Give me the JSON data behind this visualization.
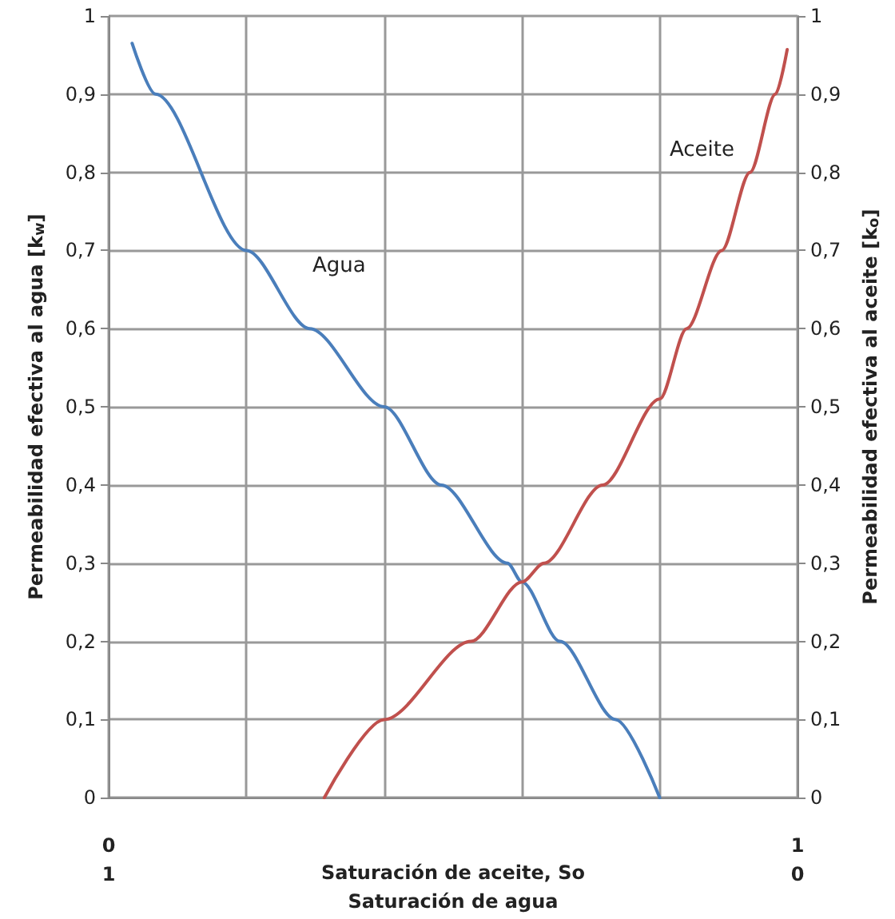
{
  "chart_data": {
    "type": "line",
    "xlabel": "Saturación de aceite, So",
    "x2label": "Saturación de agua",
    "ylabel": "Permeabilidad efectiva al agua [k$_{w}$]",
    "y2label": "Permeabilidad efectiva al aceite [k$_{o}$]",
    "xlim": [
      0,
      1
    ],
    "xticks": [
      {
        "value": 0,
        "label": "0"
      },
      {
        "value": 0.2,
        "label": null
      },
      {
        "value": 0.4,
        "label": null
      },
      {
        "value": 0.6,
        "label": null
      },
      {
        "value": 0.8,
        "label": null
      },
      {
        "value": 1,
        "label": "1"
      }
    ],
    "x2lim": [
      1,
      0
    ],
    "x2ticks": [
      1,
      0
    ],
    "ylim": [
      0,
      1
    ],
    "yticks": [
      {
        "value": 0,
        "label": "0"
      },
      {
        "value": 0.1,
        "label": "0,1"
      },
      {
        "value": 0.2,
        "label": "0,2"
      },
      {
        "value": 0.3,
        "label": "0,3"
      },
      {
        "value": 0.4,
        "label": "0,4"
      },
      {
        "value": 0.5,
        "label": "0,5"
      },
      {
        "value": 0.6,
        "label": "0,6"
      },
      {
        "value": 0.7,
        "label": "0,7"
      },
      {
        "value": 0.8,
        "label": "0,8"
      },
      {
        "value": 0.9,
        "label": "0,9"
      },
      {
        "value": 1,
        "label": "1"
      }
    ],
    "y2lim": [
      0,
      1
    ],
    "y2ticks": [
      {
        "value": 0,
        "label": "0"
      },
      {
        "value": 0.1,
        "label": "0,1"
      },
      {
        "value": 0.2,
        "label": "0,2"
      },
      {
        "value": 0.3,
        "label": "0,3"
      },
      {
        "value": 0.4,
        "label": "0,4"
      },
      {
        "value": 0.5,
        "label": "0,5"
      },
      {
        "value": 0.6,
        "label": "0,6"
      },
      {
        "value": 0.7,
        "label": "0,7"
      },
      {
        "value": 0.8,
        "label": "0,8"
      },
      {
        "value": 0.9,
        "label": "0,9"
      },
      {
        "value": 1,
        "label": "1"
      }
    ],
    "grid": true,
    "legend": false,
    "marker": "none",
    "line_style": "solid",
    "series": [
      {
        "name": "Agua",
        "color": "#4a7ebb",
        "x": [
          0.034,
          0.068,
          0.2,
          0.292,
          0.4,
          0.483,
          0.579,
          0.6,
          0.655,
          0.736,
          0.8
        ],
        "values": [
          0.965,
          0.9,
          0.7,
          0.6,
          0.5,
          0.4,
          0.3,
          0.276,
          0.2,
          0.1,
          0
        ]
      },
      {
        "name": "Aceite",
        "color": "#c0504d",
        "x": [
          0.313,
          0.4,
          0.526,
          0.6,
          0.632,
          0.717,
          0.8,
          0.839,
          0.89,
          0.931,
          0.968,
          0.985
        ],
        "values": [
          0,
          0.1,
          0.2,
          0.276,
          0.3,
          0.4,
          0.51,
          0.6,
          0.7,
          0.8,
          0.9,
          0.957
        ]
      }
    ]
  }
}
